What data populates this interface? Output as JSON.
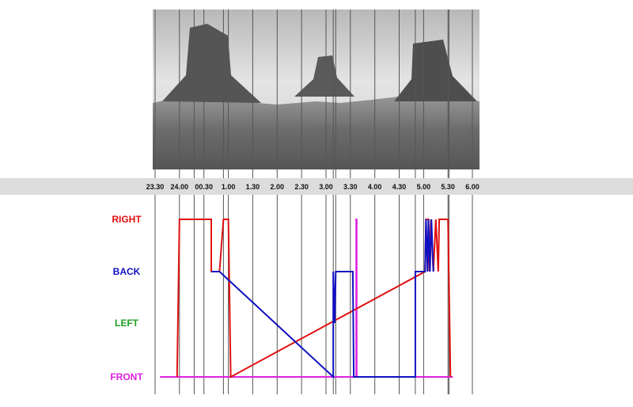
{
  "chart_data": {
    "type": "line",
    "title": "",
    "xlabel": "",
    "ylabel": "",
    "x_ticks": [
      "23.30",
      "24.00",
      "00.30",
      "1.00",
      "1.30",
      "2.00",
      "2.30",
      "3.00",
      "3.30",
      "4.00",
      "4.30",
      "5.00",
      "5.30",
      "6.00"
    ],
    "x_tick_hours": [
      23.5,
      24.0,
      24.5,
      25.0,
      25.5,
      26.0,
      26.5,
      27.0,
      27.5,
      28.0,
      28.5,
      29.0,
      29.5,
      30.0
    ],
    "y_categories": [
      "FRONT",
      "LEFT",
      "BACK",
      "RIGHT"
    ],
    "y_colors": {
      "RIGHT": "#e01010",
      "BACK": "#1010c0",
      "LEFT": "#20a020",
      "FRONT": "#e020e0"
    },
    "grid": true,
    "background_image": "monument-valley-panorama",
    "extra_vertical_lines_hours": [
      24.3,
      24.9,
      27.15,
      27.2,
      28.83,
      29.52
    ],
    "series": [
      {
        "name": "",
        "color": "#e020e0",
        "points": [
          [
            23.6,
            "FRONT"
          ],
          [
            23.95,
            "FRONT"
          ],
          [
            25.05,
            "FRONT"
          ],
          [
            27.15,
            "FRONT"
          ],
          [
            27.62,
            "FRONT"
          ],
          [
            27.62,
            "RIGHT"
          ],
          [
            27.63,
            "RIGHT"
          ],
          [
            27.63,
            "FRONT"
          ],
          [
            28.0,
            "FRONT"
          ],
          [
            28.83,
            "FRONT"
          ],
          [
            29.55,
            "FRONT"
          ],
          [
            29.6,
            "FRONT"
          ]
        ]
      },
      {
        "name": "",
        "color": "#e01010",
        "points": [
          [
            23.95,
            "FRONT"
          ],
          [
            24.0,
            "RIGHT"
          ],
          [
            24.65,
            "RIGHT"
          ],
          [
            24.65,
            "BACK"
          ],
          [
            24.82,
            "BACK"
          ],
          [
            24.9,
            "RIGHT"
          ],
          [
            25.0,
            "RIGHT"
          ],
          [
            25.05,
            "FRONT"
          ],
          [
            29.03,
            "BACK"
          ],
          [
            29.05,
            "RIGHT"
          ],
          [
            29.1,
            "RIGHT"
          ],
          [
            29.12,
            "BACK"
          ],
          [
            29.15,
            "RIGHT"
          ],
          [
            29.2,
            "BACK"
          ],
          [
            29.25,
            "RIGHT"
          ],
          [
            29.3,
            "BACK"
          ],
          [
            29.32,
            "RIGHT"
          ],
          [
            29.5,
            "RIGHT"
          ],
          [
            29.55,
            "FRONT"
          ]
        ]
      },
      {
        "name": "",
        "color": "#1010c0",
        "points": [
          [
            24.65,
            "BACK"
          ],
          [
            24.82,
            "BACK"
          ],
          [
            27.15,
            "FRONT"
          ],
          [
            27.15,
            "BACK"
          ],
          [
            27.18,
            "LEFT"
          ],
          [
            27.2,
            "BACK"
          ],
          [
            27.55,
            "BACK"
          ],
          [
            27.57,
            "FRONT"
          ],
          [
            28.83,
            "FRONT"
          ],
          [
            28.83,
            "BACK"
          ],
          [
            29.03,
            "BACK"
          ],
          [
            29.05,
            "RIGHT"
          ],
          [
            29.08,
            "BACK"
          ],
          [
            29.1,
            "RIGHT"
          ],
          [
            29.13,
            "BACK"
          ],
          [
            29.16,
            "RIGHT"
          ],
          [
            29.2,
            "BACK"
          ]
        ]
      }
    ]
  }
}
